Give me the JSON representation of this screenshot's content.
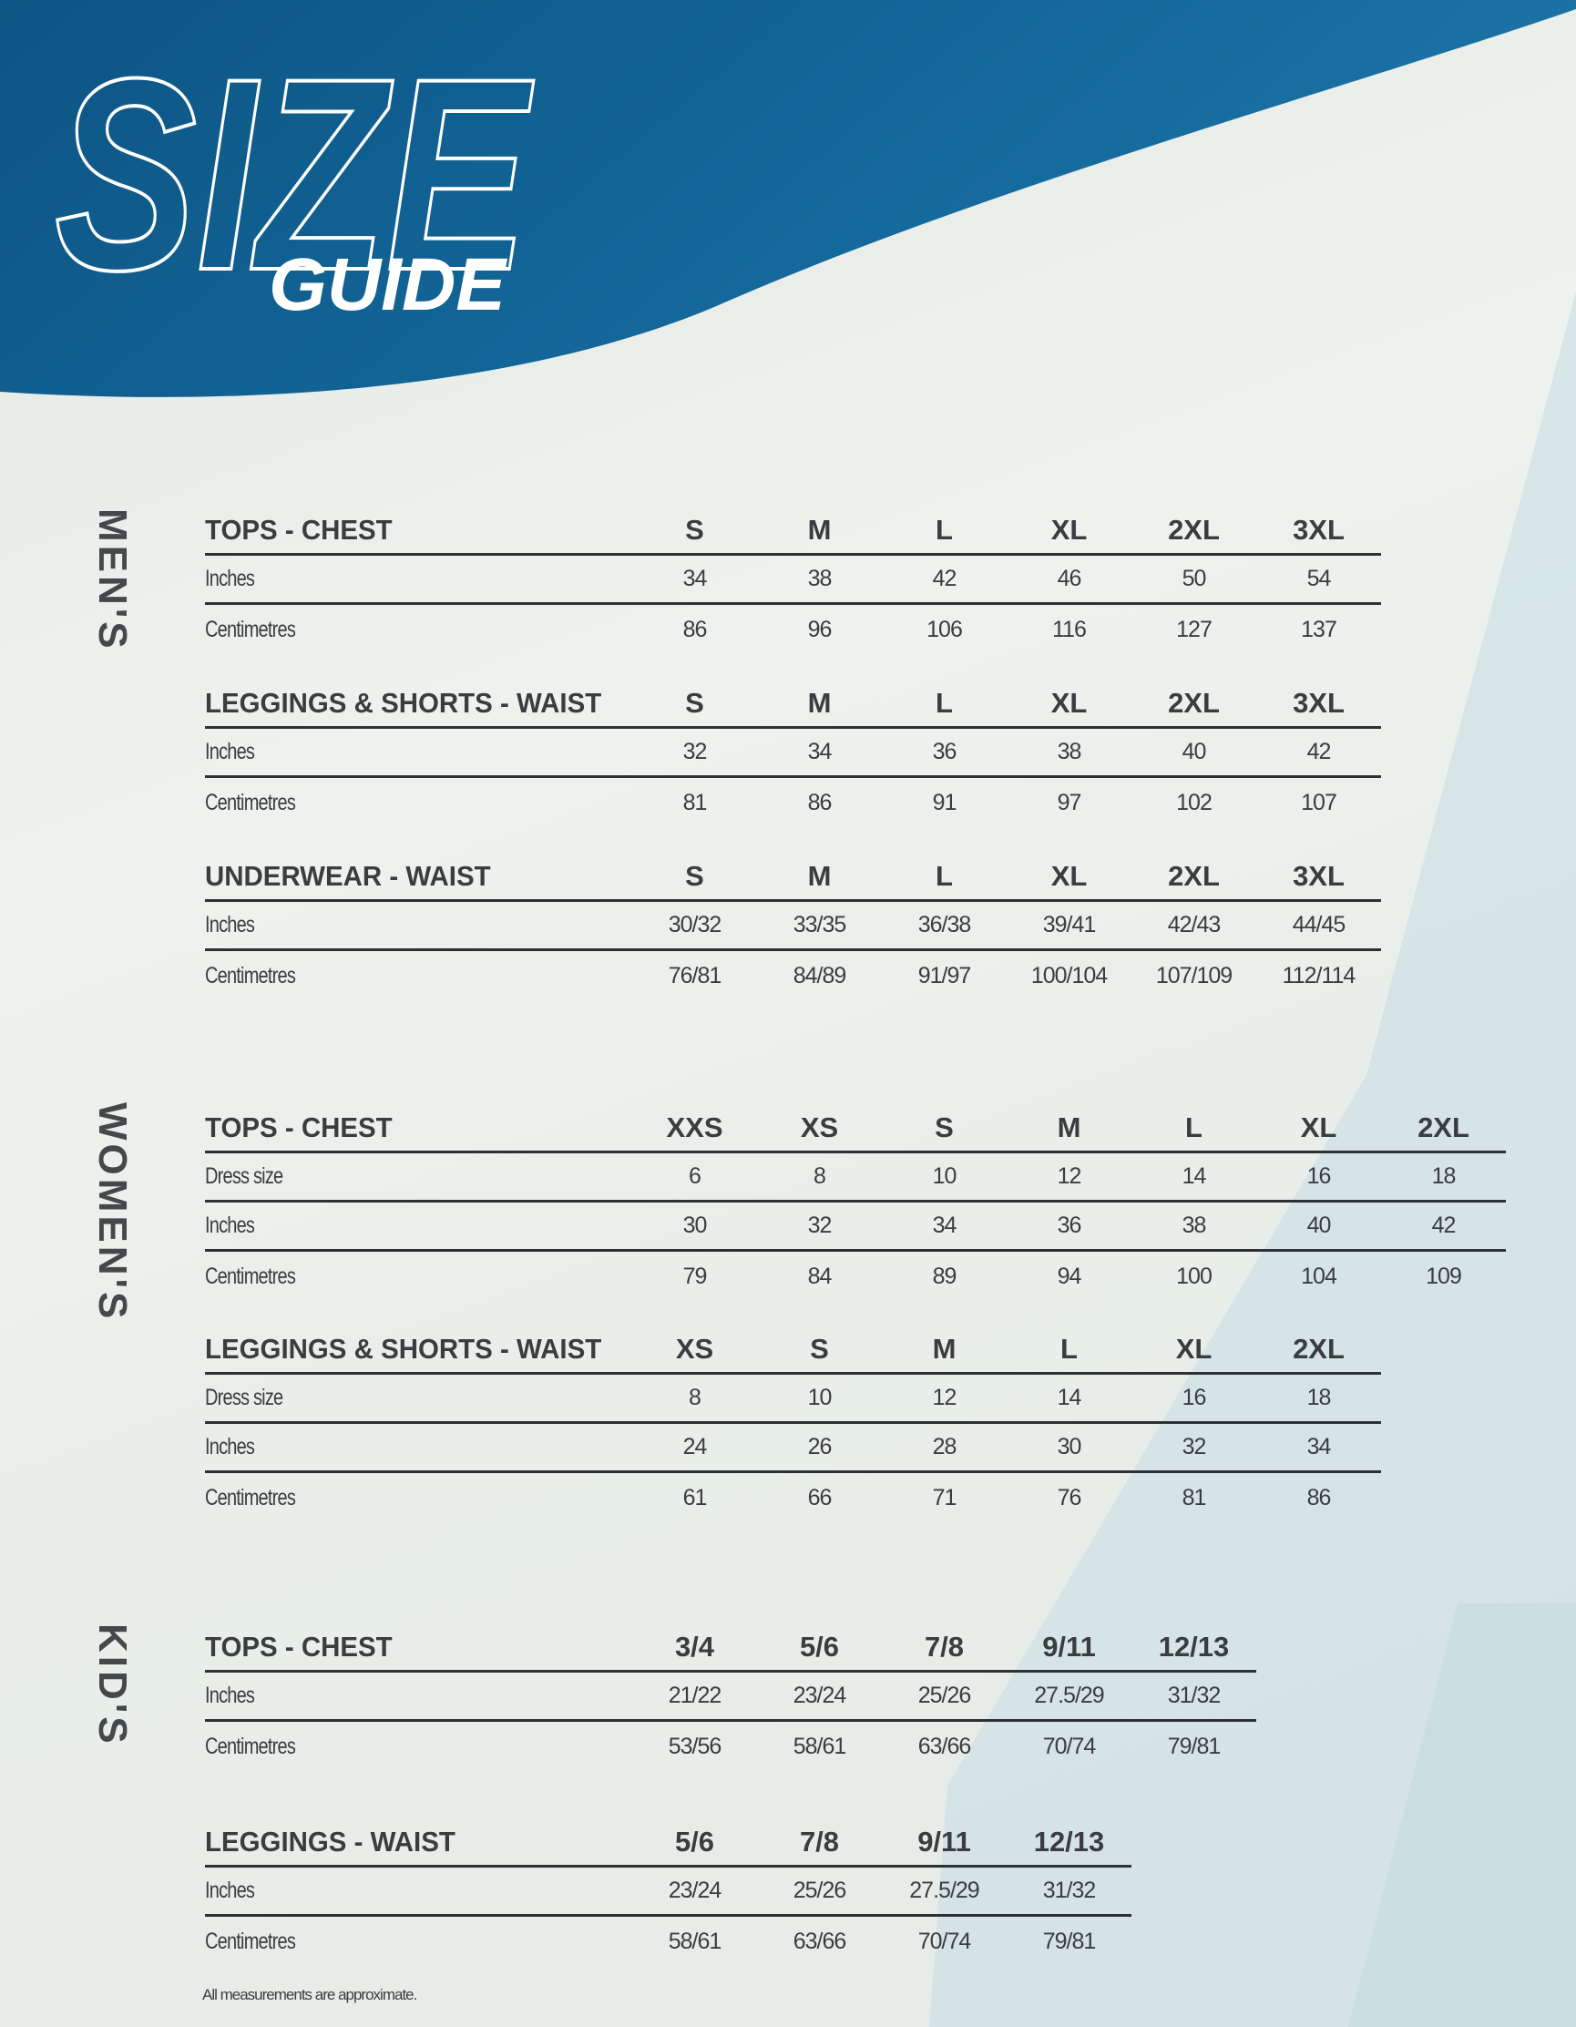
{
  "header": {
    "title_main": "SIZE",
    "title_sub": "GUIDE"
  },
  "colors": {
    "wave_blue": "#0f5a8a",
    "text": "#3a3d40",
    "rule": "#2e3033"
  },
  "sections": [
    {
      "label": "MEN'S",
      "tables": [
        {
          "title": "TOPS - CHEST",
          "sizes": [
            "S",
            "M",
            "L",
            "XL",
            "2XL",
            "3XL"
          ],
          "rows": [
            {
              "label": "Inches",
              "values": [
                "34",
                "38",
                "42",
                "46",
                "50",
                "54"
              ]
            },
            {
              "label": "Centimetres",
              "values": [
                "86",
                "96",
                "106",
                "116",
                "127",
                "137"
              ]
            }
          ]
        },
        {
          "title": "LEGGINGS & SHORTS - WAIST",
          "sizes": [
            "S",
            "M",
            "L",
            "XL",
            "2XL",
            "3XL"
          ],
          "rows": [
            {
              "label": "Inches",
              "values": [
                "32",
                "34",
                "36",
                "38",
                "40",
                "42"
              ]
            },
            {
              "label": "Centimetres",
              "values": [
                "81",
                "86",
                "91",
                "97",
                "102",
                "107"
              ]
            }
          ]
        },
        {
          "title": "UNDERWEAR - WAIST",
          "sizes": [
            "S",
            "M",
            "L",
            "XL",
            "2XL",
            "3XL"
          ],
          "rows": [
            {
              "label": "Inches",
              "values": [
                "30/32",
                "33/35",
                "36/38",
                "39/41",
                "42/43",
                "44/45"
              ]
            },
            {
              "label": "Centimetres",
              "values": [
                "76/81",
                "84/89",
                "91/97",
                "100/104",
                "107/109",
                "112/114"
              ]
            }
          ]
        }
      ]
    },
    {
      "label": "WOMEN'S",
      "tables": [
        {
          "title": "TOPS - CHEST",
          "sizes": [
            "XXS",
            "XS",
            "S",
            "M",
            "L",
            "XL",
            "2XL"
          ],
          "rows": [
            {
              "label": "Dress size",
              "values": [
                "6",
                "8",
                "10",
                "12",
                "14",
                "16",
                "18"
              ]
            },
            {
              "label": "Inches",
              "values": [
                "30",
                "32",
                "34",
                "36",
                "38",
                "40",
                "42"
              ]
            },
            {
              "label": "Centimetres",
              "values": [
                "79",
                "84",
                "89",
                "94",
                "100",
                "104",
                "109"
              ]
            }
          ]
        },
        {
          "title": "LEGGINGS & SHORTS - WAIST",
          "sizes": [
            "XS",
            "S",
            "M",
            "L",
            "XL",
            "2XL"
          ],
          "rows": [
            {
              "label": "Dress size",
              "values": [
                "8",
                "10",
                "12",
                "14",
                "16",
                "18"
              ]
            },
            {
              "label": "Inches",
              "values": [
                "24",
                "26",
                "28",
                "30",
                "32",
                "34"
              ]
            },
            {
              "label": "Centimetres",
              "values": [
                "61",
                "66",
                "71",
                "76",
                "81",
                "86"
              ]
            }
          ]
        }
      ]
    },
    {
      "label": "KID'S",
      "tables": [
        {
          "title": "TOPS - CHEST",
          "sizes": [
            "3/4",
            "5/6",
            "7/8",
            "9/11",
            "12/13"
          ],
          "rows": [
            {
              "label": "Inches",
              "values": [
                "21/22",
                "23/24",
                "25/26",
                "27.5/29",
                "31/32"
              ]
            },
            {
              "label": "Centimetres",
              "values": [
                "53/56",
                "58/61",
                "63/66",
                "70/74",
                "79/81"
              ]
            }
          ]
        },
        {
          "title": "LEGGINGS - WAIST",
          "sizes": [
            "5/6",
            "7/8",
            "9/11",
            "12/13"
          ],
          "rows": [
            {
              "label": "Inches",
              "values": [
                "23/24",
                "25/26",
                "27.5/29",
                "31/32"
              ]
            },
            {
              "label": "Centimetres",
              "values": [
                "58/61",
                "63/66",
                "70/74",
                "79/81"
              ]
            }
          ]
        }
      ]
    }
  ],
  "footnote": "All measurements are approximate."
}
